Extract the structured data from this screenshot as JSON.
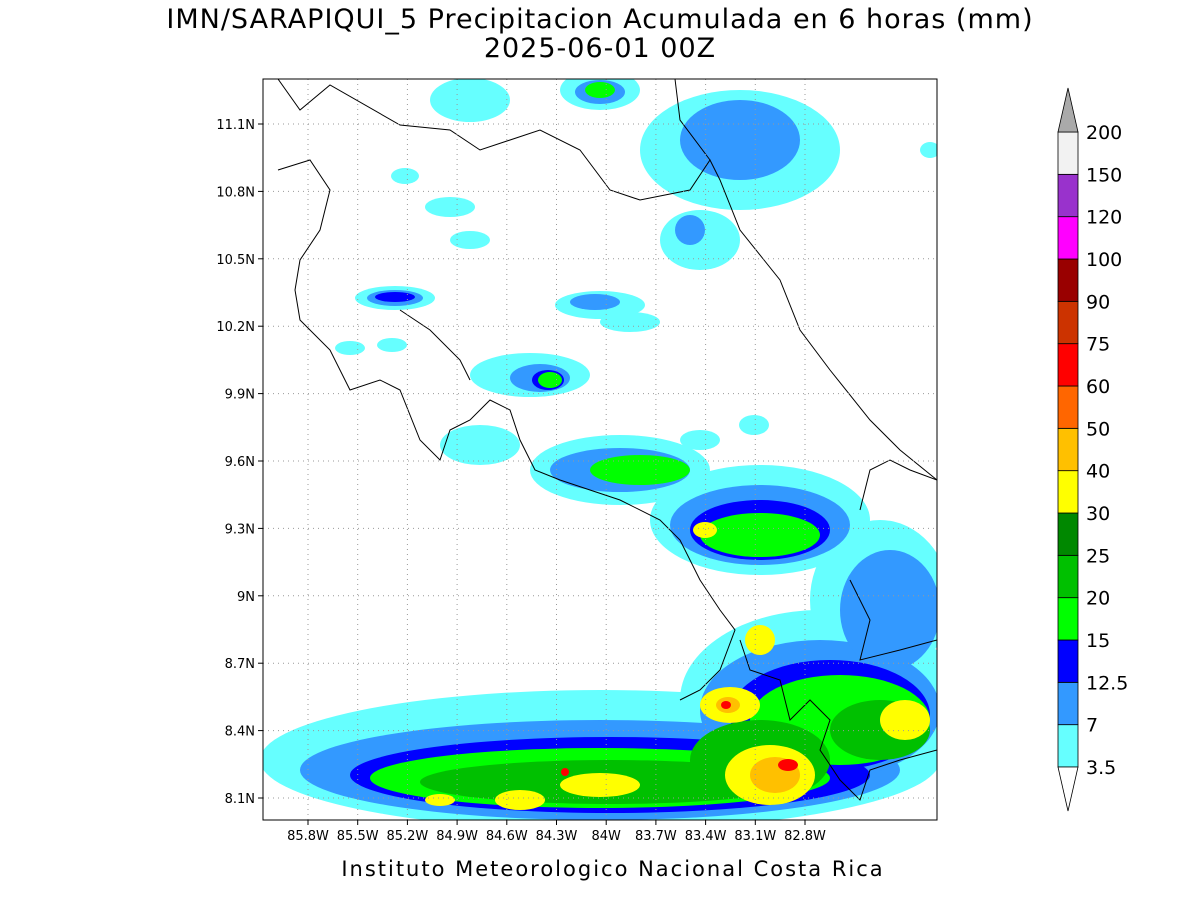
{
  "header": {
    "title": "IMN/SARAPIQUI_5 Precipitacion Acumulada en 6 horas (mm)",
    "subtitle": "2025-06-01 00Z"
  },
  "axes": {
    "xticks": [
      "85.8W",
      "85.5W",
      "85.2W",
      "84.9W",
      "84.6W",
      "84.3W",
      "84W",
      "83.7W",
      "83.4W",
      "83.1W",
      "82.8W"
    ],
    "yticks": [
      "11.1N",
      "10.8N",
      "10.5N",
      "10.2N",
      "9.9N",
      "9.6N",
      "9.3N",
      "9N",
      "8.7N",
      "8.4N",
      "8.1N"
    ]
  },
  "colorbar": {
    "levels": [
      "3.5",
      "7",
      "12.5",
      "15",
      "20",
      "25",
      "30",
      "40",
      "50",
      "60",
      "75",
      "90",
      "100",
      "120",
      "150",
      "200"
    ],
    "colors": [
      "#66ffff",
      "#3399ff",
      "#0000ff",
      "#00ff00",
      "#00c000",
      "#008800",
      "#ffff00",
      "#ffc000",
      "#ff6600",
      "#ff0000",
      "#cc3300",
      "#990000",
      "#ff00ff",
      "#9932cc",
      "#f2f2f2"
    ],
    "under_color": "#ffffff",
    "over_color": "#aaaaaa"
  },
  "footer": "Instituto Meteorologico Nacional Costa Rica"
}
